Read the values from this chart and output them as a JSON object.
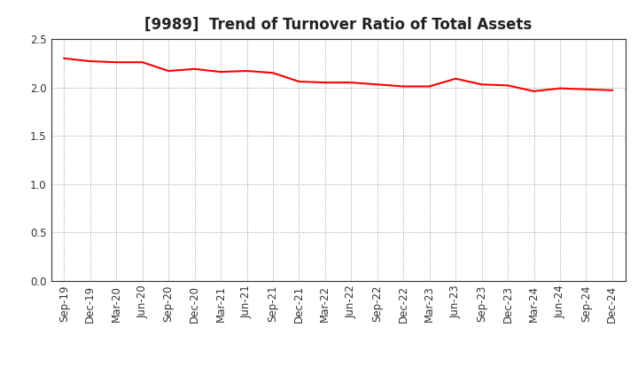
{
  "title": "[9989]  Trend of Turnover Ratio of Total Assets",
  "line_color": "#ff0000",
  "line_width": 1.5,
  "background_color": "#ffffff",
  "grid_color": "#999999",
  "ylim": [
    0.0,
    2.5
  ],
  "yticks": [
    0.0,
    0.5,
    1.0,
    1.5,
    2.0,
    2.5
  ],
  "x_labels": [
    "Sep-19",
    "Dec-19",
    "Mar-20",
    "Jun-20",
    "Sep-20",
    "Dec-20",
    "Mar-21",
    "Jun-21",
    "Sep-21",
    "Dec-21",
    "Mar-22",
    "Jun-22",
    "Sep-22",
    "Dec-22",
    "Mar-23",
    "Jun-23",
    "Sep-23",
    "Dec-23",
    "Mar-24",
    "Jun-24",
    "Sep-24",
    "Dec-24"
  ],
  "values": [
    2.3,
    2.27,
    2.26,
    2.26,
    2.17,
    2.19,
    2.16,
    2.17,
    2.15,
    2.06,
    2.05,
    2.05,
    2.03,
    2.01,
    2.01,
    2.09,
    2.03,
    2.02,
    1.96,
    1.99,
    1.98,
    1.97
  ],
  "title_fontsize": 12,
  "tick_fontsize": 8.5,
  "tick_color": "#333333"
}
